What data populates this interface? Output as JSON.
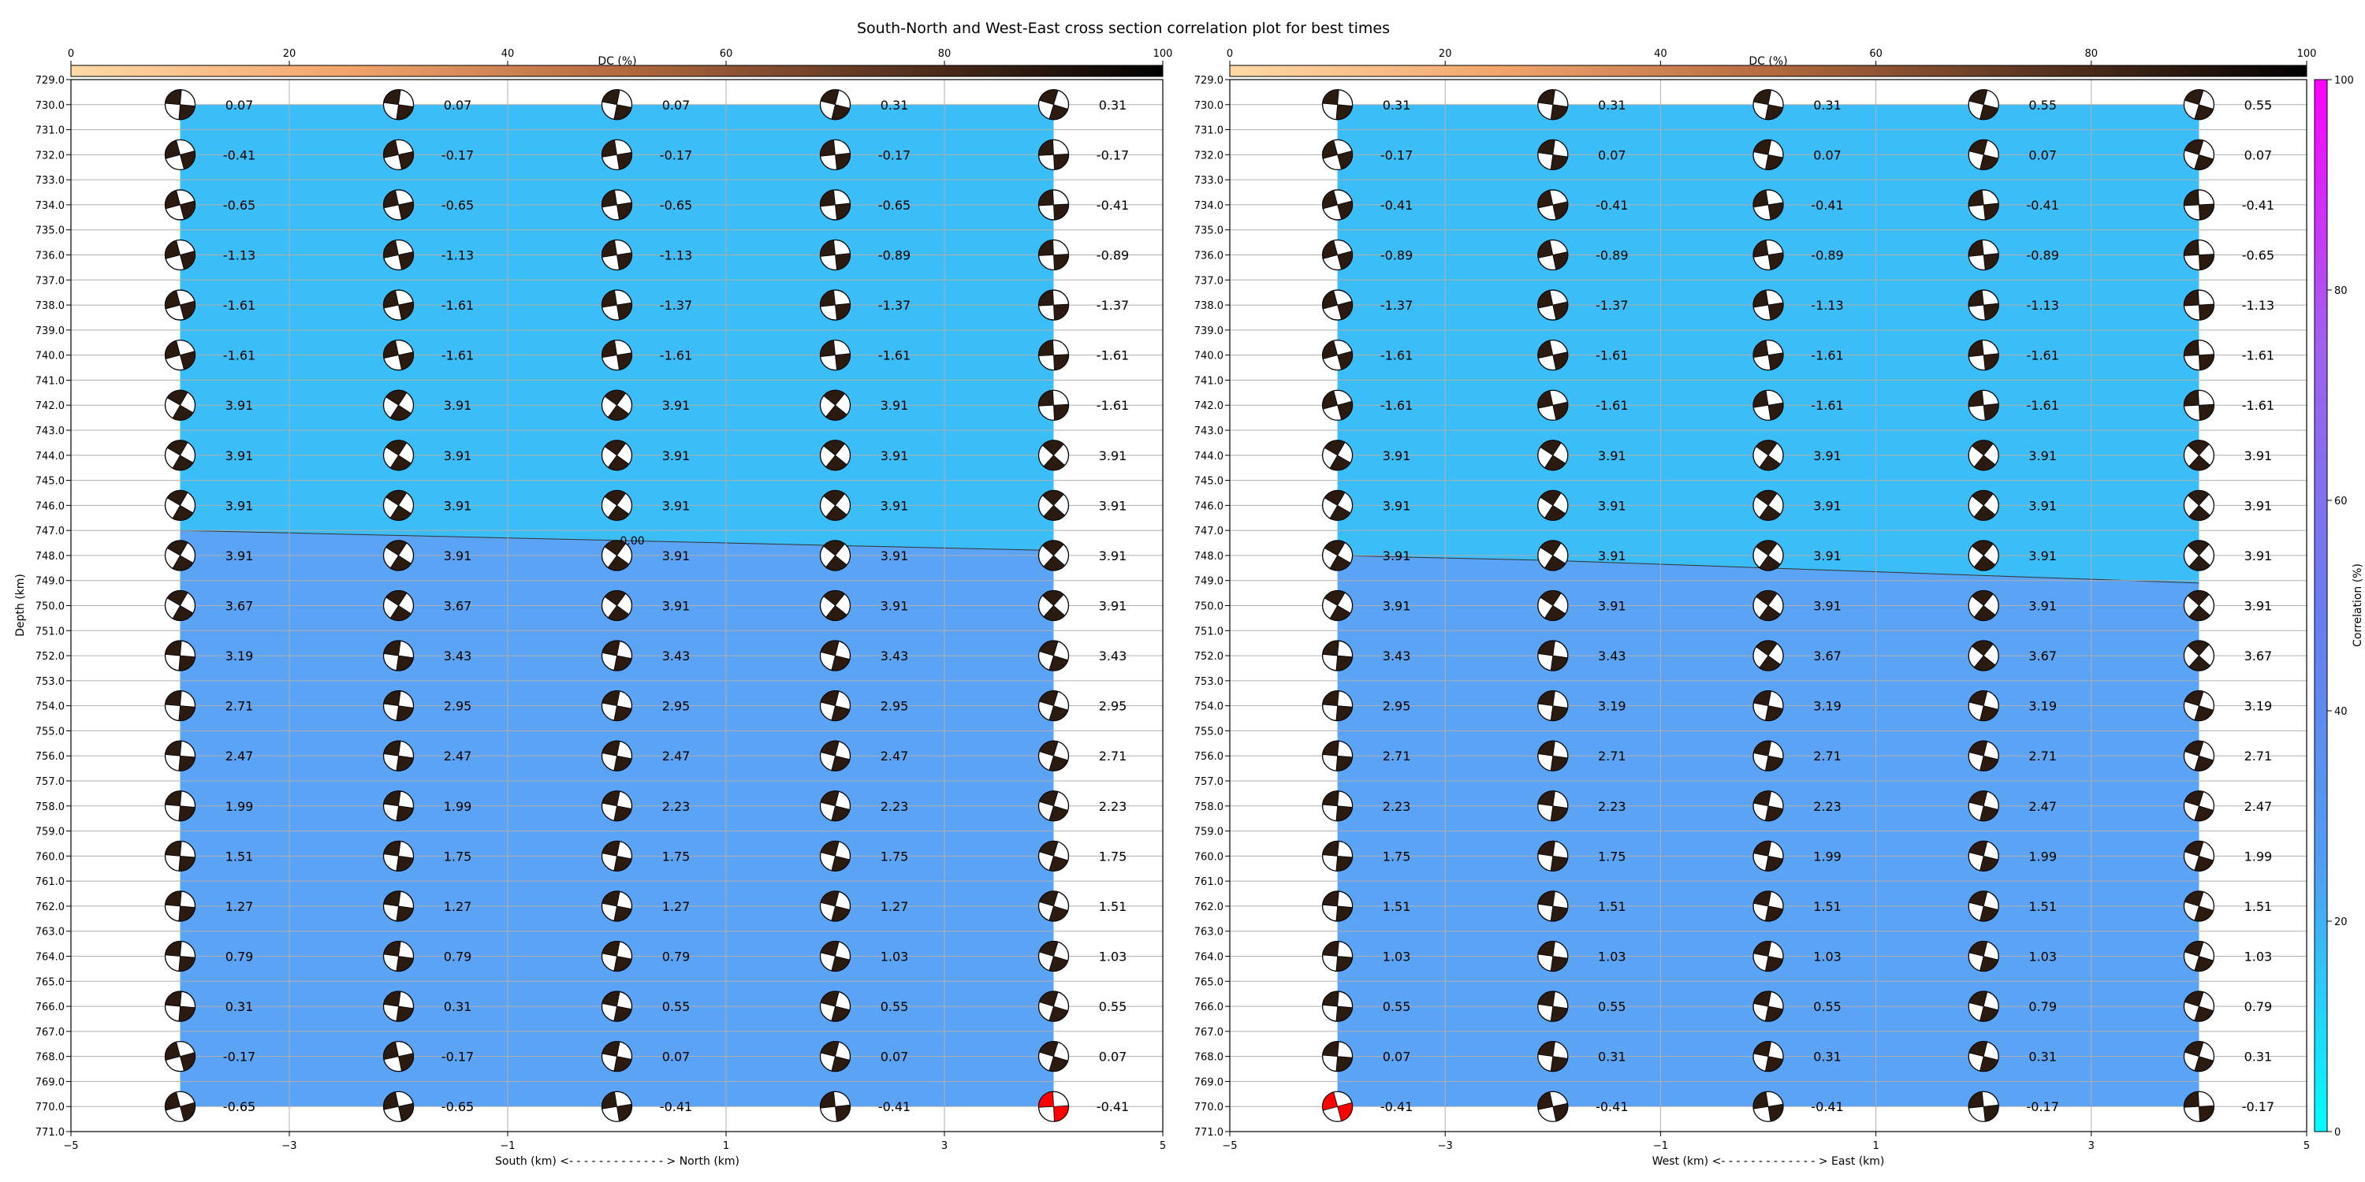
{
  "figure": {
    "title": "South-North and West-East cross section correlation plot for best times"
  },
  "chart_data": [
    {
      "type": "scatter",
      "panel": "south-north",
      "title": "",
      "xlabel": "South (km) <- - - - - - - - - - - - - > North (km)",
      "ylabel": "Depth (km)",
      "xlim": [
        -5,
        5
      ],
      "ylim": [
        771,
        729
      ],
      "x_ticks": [
        -5,
        -3,
        -1,
        1,
        3,
        5
      ],
      "y_ticks": [
        729,
        730,
        731,
        732,
        733,
        734,
        735,
        736,
        737,
        738,
        739,
        740,
        741,
        742,
        743,
        744,
        745,
        746,
        747,
        748,
        749,
        750,
        751,
        752,
        753,
        754,
        755,
        756,
        757,
        758,
        759,
        760,
        761,
        762,
        763,
        764,
        765,
        766,
        767,
        768,
        769,
        770,
        771
      ],
      "grid": true,
      "x": [
        -4,
        -2,
        0,
        2,
        4
      ],
      "depths": [
        730,
        732,
        734,
        736,
        738,
        740,
        742,
        744,
        746,
        748,
        750,
        752,
        754,
        756,
        758,
        760,
        762,
        764,
        766,
        768,
        770
      ],
      "values": [
        [
          0.07,
          0.07,
          0.07,
          0.31,
          0.31
        ],
        [
          -0.41,
          -0.17,
          -0.17,
          -0.17,
          -0.17
        ],
        [
          -0.65,
          -0.65,
          -0.65,
          -0.65,
          -0.41
        ],
        [
          -1.13,
          -1.13,
          -1.13,
          -0.89,
          -0.89
        ],
        [
          -1.61,
          -1.61,
          -1.37,
          -1.37,
          -1.37
        ],
        [
          -1.61,
          -1.61,
          -1.61,
          -1.61,
          -1.61
        ],
        [
          3.91,
          3.91,
          3.91,
          3.91,
          -1.61
        ],
        [
          3.91,
          3.91,
          3.91,
          3.91,
          3.91
        ],
        [
          3.91,
          3.91,
          3.91,
          3.91,
          3.91
        ],
        [
          3.91,
          3.91,
          3.91,
          3.91,
          3.91
        ],
        [
          3.67,
          3.67,
          3.91,
          3.91,
          3.91
        ],
        [
          3.19,
          3.43,
          3.43,
          3.43,
          3.43
        ],
        [
          2.71,
          2.95,
          2.95,
          2.95,
          2.95
        ],
        [
          2.47,
          2.47,
          2.47,
          2.47,
          2.71
        ],
        [
          1.99,
          1.99,
          2.23,
          2.23,
          2.23
        ],
        [
          1.51,
          1.75,
          1.75,
          1.75,
          1.75
        ],
        [
          1.27,
          1.27,
          1.27,
          1.27,
          1.51
        ],
        [
          0.79,
          0.79,
          0.79,
          1.03,
          1.03
        ],
        [
          0.31,
          0.31,
          0.55,
          0.55,
          0.55
        ],
        [
          -0.17,
          -0.17,
          0.07,
          0.07,
          0.07
        ],
        [
          -0.65,
          -0.65,
          -0.41,
          -0.41,
          -0.41
        ]
      ],
      "best_solution": {
        "x": 4,
        "depth": 770
      },
      "upper_layer_color": "#3bbdf7",
      "lower_layer_color": "#5aa3f5",
      "interface_depth": [
        747.0,
        747.2,
        747.4,
        747.6,
        747.8
      ],
      "interface_fragment_text": "0.00"
    },
    {
      "type": "scatter",
      "panel": "west-east",
      "title": "",
      "xlabel": "West (km) <- - - - - - - - - - - - - > East (km)",
      "ylabel": "",
      "xlim": [
        -5,
        5
      ],
      "ylim": [
        771,
        729
      ],
      "x_ticks": [
        -5,
        -3,
        -1,
        1,
        3,
        5
      ],
      "y_ticks": [
        729,
        730,
        731,
        732,
        733,
        734,
        735,
        736,
        737,
        738,
        739,
        740,
        741,
        742,
        743,
        744,
        745,
        746,
        747,
        748,
        749,
        750,
        751,
        752,
        753,
        754,
        755,
        756,
        757,
        758,
        759,
        760,
        761,
        762,
        763,
        764,
        765,
        766,
        767,
        768,
        769,
        770,
        771
      ],
      "grid": true,
      "x": [
        -4,
        -2,
        0,
        2,
        4
      ],
      "depths": [
        730,
        732,
        734,
        736,
        738,
        740,
        742,
        744,
        746,
        748,
        750,
        752,
        754,
        756,
        758,
        760,
        762,
        764,
        766,
        768,
        770
      ],
      "values": [
        [
          0.31,
          0.31,
          0.31,
          0.55,
          0.55
        ],
        [
          -0.17,
          0.07,
          0.07,
          0.07,
          0.07
        ],
        [
          -0.41,
          -0.41,
          -0.41,
          -0.41,
          -0.41
        ],
        [
          -0.89,
          -0.89,
          -0.89,
          -0.89,
          -0.65
        ],
        [
          -1.37,
          -1.37,
          -1.13,
          -1.13,
          -1.13
        ],
        [
          -1.61,
          -1.61,
          -1.61,
          -1.61,
          -1.61
        ],
        [
          -1.61,
          -1.61,
          -1.61,
          -1.61,
          -1.61
        ],
        [
          3.91,
          3.91,
          3.91,
          3.91,
          3.91
        ],
        [
          3.91,
          3.91,
          3.91,
          3.91,
          3.91
        ],
        [
          3.91,
          3.91,
          3.91,
          3.91,
          3.91
        ],
        [
          3.91,
          3.91,
          3.91,
          3.91,
          3.91
        ],
        [
          3.43,
          3.43,
          3.67,
          3.67,
          3.67
        ],
        [
          2.95,
          3.19,
          3.19,
          3.19,
          3.19
        ],
        [
          2.71,
          2.71,
          2.71,
          2.71,
          2.71
        ],
        [
          2.23,
          2.23,
          2.23,
          2.47,
          2.47
        ],
        [
          1.75,
          1.75,
          1.99,
          1.99,
          1.99
        ],
        [
          1.51,
          1.51,
          1.51,
          1.51,
          1.51
        ],
        [
          1.03,
          1.03,
          1.03,
          1.03,
          1.03
        ],
        [
          0.55,
          0.55,
          0.55,
          0.79,
          0.79
        ],
        [
          0.07,
          0.31,
          0.31,
          0.31,
          0.31
        ],
        [
          -0.41,
          -0.41,
          -0.41,
          -0.17,
          -0.17
        ]
      ],
      "best_solution": {
        "x": -4,
        "depth": 770
      },
      "upper_layer_color": "#3bbdf7",
      "lower_layer_color": "#5aa3f5",
      "interface_depth": [
        748.0,
        748.2,
        748.5,
        748.8,
        749.1
      ]
    }
  ],
  "dc_colorbar": {
    "label": "DC (%)",
    "range": [
      0,
      100
    ],
    "ticks": [
      0,
      20,
      40,
      60,
      80,
      100
    ],
    "colors": [
      "#ffd9a6",
      "#f2a56c",
      "#b56b3f",
      "#5a3420",
      "#000000"
    ]
  },
  "correlation_colorbar": {
    "label": "Correlation (%)",
    "range": [
      0,
      100
    ],
    "ticks": [
      0,
      20,
      40,
      60,
      80,
      100
    ],
    "colors": [
      "#00ffff",
      "#4f9ef2",
      "#6a7cf0",
      "#a060f0",
      "#ff00ff"
    ]
  },
  "colors": {
    "beachball_pressure": "#2a1a10",
    "beachball_best": "#ff0000",
    "interface_line": "#333333",
    "grid": "#b0b0b0"
  }
}
